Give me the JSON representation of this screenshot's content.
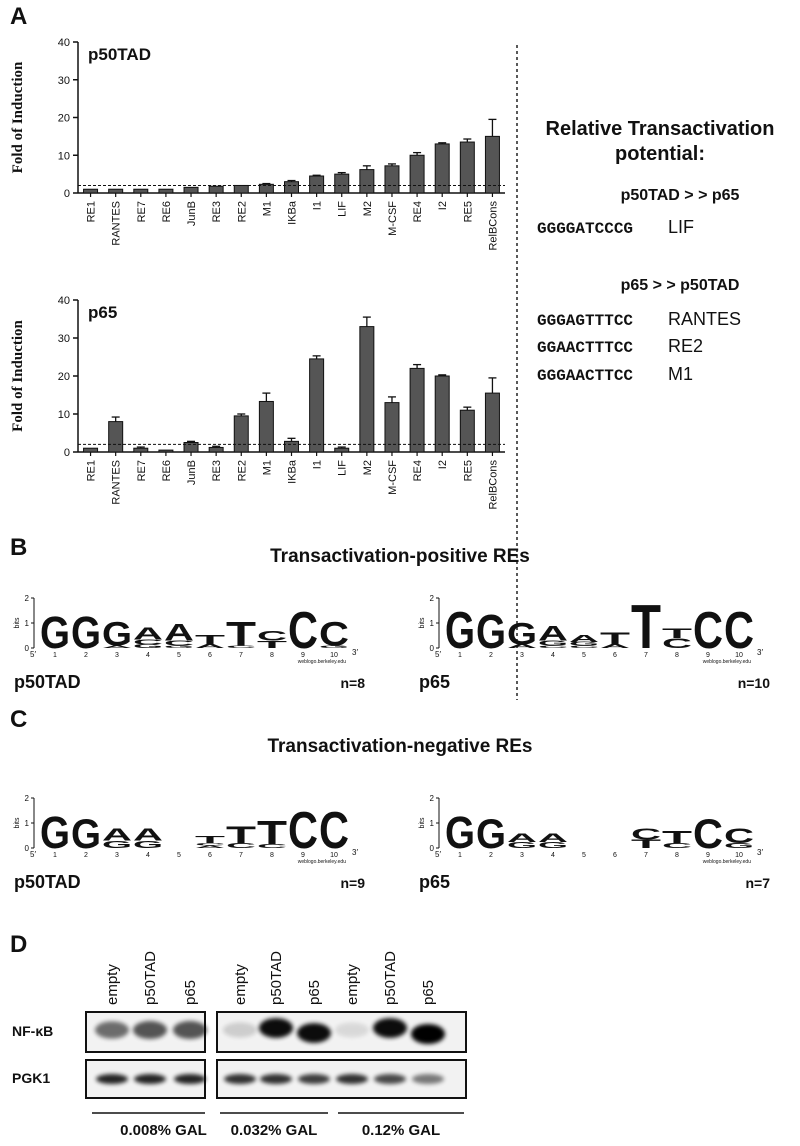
{
  "panel_labels": [
    "A",
    "B",
    "C",
    "D"
  ],
  "chart_data": [
    {
      "type": "bar",
      "title": "p50TAD",
      "y_label": "Fold of Induction",
      "categories": [
        "RE1",
        "RANTES",
        "RE7",
        "RE6",
        "JunB",
        "RE3",
        "RE2",
        "M1",
        "IKBa",
        "I1",
        "LIF",
        "M2",
        "M-CSF",
        "RE4",
        "I2",
        "RE5",
        "RelBCons"
      ],
      "values": [
        1,
        1,
        1,
        1,
        1.5,
        1.8,
        2,
        2.3,
        3,
        4.5,
        5,
        6.2,
        7.2,
        10,
        13,
        13.5,
        15
      ],
      "errors": [
        null,
        null,
        null,
        null,
        null,
        null,
        null,
        0.2,
        0.3,
        0.2,
        0.4,
        1,
        0.5,
        0.7,
        0.3,
        0.8,
        4.5
      ],
      "threshold": 2,
      "color": "#555555",
      "ylim": [
        0,
        40
      ],
      "yticks": [
        0,
        10,
        20,
        30,
        40
      ]
    },
    {
      "type": "bar",
      "title": "p65",
      "y_label": "Fold of Induction",
      "categories": [
        "RE1",
        "RANTES",
        "RE7",
        "RE6",
        "JunB",
        "RE3",
        "RE2",
        "M1",
        "IKBa",
        "I1",
        "LIF",
        "M2",
        "M-CSF",
        "RE4",
        "I2",
        "RE5",
        "RelBCons"
      ],
      "values": [
        1,
        8,
        1,
        0.5,
        2.5,
        1.2,
        9.5,
        13.3,
        2.8,
        24.5,
        1,
        33,
        13,
        22,
        20,
        11,
        15.5
      ],
      "errors": [
        null,
        1.2,
        0.3,
        null,
        0.3,
        0.3,
        0.5,
        2.2,
        0.8,
        0.8,
        0.3,
        2.5,
        1.5,
        1,
        0.3,
        0.8,
        4
      ],
      "threshold": 2,
      "color": "#555555",
      "ylim": [
        0,
        40
      ],
      "yticks": [
        0,
        10,
        20,
        30,
        40
      ]
    }
  ],
  "summary": {
    "title_lines": [
      "Relative Transactivation",
      "potential:"
    ],
    "groups": [
      {
        "heading": "p50TAD > > p65",
        "items": [
          {
            "seq": "GGGGATCCCG",
            "name": "LIF"
          }
        ]
      },
      {
        "heading": "p65 > > p50TAD",
        "items": [
          {
            "seq": "GGGAGTTTCC",
            "name": "RANTES"
          },
          {
            "seq": "GGAACTTTCC",
            "name": "RE2"
          },
          {
            "seq": "GGGAACTTCC",
            "name": "M1"
          }
        ]
      }
    ]
  },
  "logos": {
    "positive_title": "Transactivation-positive REs",
    "negative_title": "Transactivation-negative REs",
    "y_label": "bits",
    "yticks": [
      0,
      1,
      2
    ],
    "positions": [
      1,
      2,
      3,
      4,
      5,
      6,
      7,
      8,
      9,
      10
    ],
    "ends": [
      "5′",
      "3′"
    ],
    "credit": "weblogo.berkeley.edu",
    "letter_colors": {
      "G": "#f5a800",
      "A": "#1fae2b",
      "T": "#e3181b",
      "C": "#1a1ad6"
    },
    "panels": [
      {
        "name": "p50TAD",
        "n": "n=8",
        "stacks": [
          [
            {
              "letter": "G",
              "bits": 1.3
            }
          ],
          [
            {
              "letter": "G",
              "bits": 1.3
            }
          ],
          [
            {
              "letter": "A",
              "bits": 0.1
            },
            {
              "letter": "G",
              "bits": 1.0
            }
          ],
          [
            {
              "letter": "G",
              "bits": 0.15
            },
            {
              "letter": "C",
              "bits": 0.2
            },
            {
              "letter": "A",
              "bits": 0.5
            }
          ],
          [
            {
              "letter": "G",
              "bits": 0.1
            },
            {
              "letter": "C",
              "bits": 0.2
            },
            {
              "letter": "A",
              "bits": 0.7
            }
          ],
          [
            {
              "letter": "A",
              "bits": 0.15
            },
            {
              "letter": "T",
              "bits": 0.4
            }
          ],
          [
            {
              "letter": "C",
              "bits": 0.1
            },
            {
              "letter": "T",
              "bits": 1.0
            }
          ],
          [
            {
              "letter": "T",
              "bits": 0.3
            },
            {
              "letter": "C",
              "bits": 0.4
            }
          ],
          [
            {
              "letter": "C",
              "bits": 1.5
            }
          ],
          [
            {
              "letter": "G",
              "bits": 0.1
            },
            {
              "letter": "C",
              "bits": 1.0
            }
          ]
        ]
      },
      {
        "name": "p65",
        "n": "n=10",
        "stacks": [
          [
            {
              "letter": "G",
              "bits": 1.5
            }
          ],
          [
            {
              "letter": "G",
              "bits": 1.4
            }
          ],
          [
            {
              "letter": "A",
              "bits": 0.15
            },
            {
              "letter": "G",
              "bits": 0.9
            }
          ],
          [
            {
              "letter": "C",
              "bits": 0.1
            },
            {
              "letter": "G",
              "bits": 0.2
            },
            {
              "letter": "A",
              "bits": 0.6
            }
          ],
          [
            {
              "letter": "C",
              "bits": 0.1
            },
            {
              "letter": "G",
              "bits": 0.15
            },
            {
              "letter": "A",
              "bits": 0.3
            }
          ],
          [
            {
              "letter": "A",
              "bits": 0.15
            },
            {
              "letter": "T",
              "bits": 0.5
            }
          ],
          [
            {
              "letter": "T",
              "bits": 1.8
            }
          ],
          [
            {
              "letter": "C",
              "bits": 0.4
            },
            {
              "letter": "T",
              "bits": 0.4
            }
          ],
          [
            {
              "letter": "C",
              "bits": 1.5
            }
          ],
          [
            {
              "letter": "C",
              "bits": 1.5
            }
          ]
        ]
      },
      {
        "name": "p50TAD",
        "n": "n=9",
        "stacks": [
          [
            {
              "letter": "G",
              "bits": 1.3
            }
          ],
          [
            {
              "letter": "G",
              "bits": 1.2
            }
          ],
          [
            {
              "letter": "G",
              "bits": 0.3
            },
            {
              "letter": "A",
              "bits": 0.5
            }
          ],
          [
            {
              "letter": "G",
              "bits": 0.3
            },
            {
              "letter": "A",
              "bits": 0.5
            }
          ],
          [],
          [
            {
              "letter": "A",
              "bits": 0.1
            },
            {
              "letter": "C",
              "bits": 0.1
            },
            {
              "letter": "T",
              "bits": 0.3
            }
          ],
          [
            {
              "letter": "C",
              "bits": 0.2
            },
            {
              "letter": "T",
              "bits": 0.7
            }
          ],
          [
            {
              "letter": "C",
              "bits": 0.15
            },
            {
              "letter": "T",
              "bits": 1.0
            }
          ],
          [
            {
              "letter": "C",
              "bits": 1.5
            }
          ],
          [
            {
              "letter": "C",
              "bits": 1.5
            }
          ]
        ]
      },
      {
        "name": "p65",
        "n": "n=7",
        "stacks": [
          [
            {
              "letter": "G",
              "bits": 1.3
            }
          ],
          [
            {
              "letter": "G",
              "bits": 1.2
            }
          ],
          [
            {
              "letter": "G",
              "bits": 0.25
            },
            {
              "letter": "A",
              "bits": 0.35
            }
          ],
          [
            {
              "letter": "G",
              "bits": 0.25
            },
            {
              "letter": "A",
              "bits": 0.35
            }
          ],
          [],
          [],
          [
            {
              "letter": "T",
              "bits": 0.35
            },
            {
              "letter": "C",
              "bits": 0.45
            }
          ],
          [
            {
              "letter": "C",
              "bits": 0.2
            },
            {
              "letter": "T",
              "bits": 0.5
            }
          ],
          [
            {
              "letter": "C",
              "bits": 1.2
            }
          ],
          [
            {
              "letter": "G",
              "bits": 0.2
            },
            {
              "letter": "C",
              "bits": 0.6
            }
          ]
        ]
      }
    ]
  },
  "blot": {
    "lanes": [
      "empty",
      "p50TAD",
      "p65",
      "empty",
      "p50TAD",
      "p65",
      "empty",
      "p50TAD",
      "p65"
    ],
    "rows": [
      "NF-κB",
      "PGK1"
    ],
    "conditions": [
      "0.008% GAL",
      "0.032% GAL",
      "0.12% GAL"
    ]
  }
}
